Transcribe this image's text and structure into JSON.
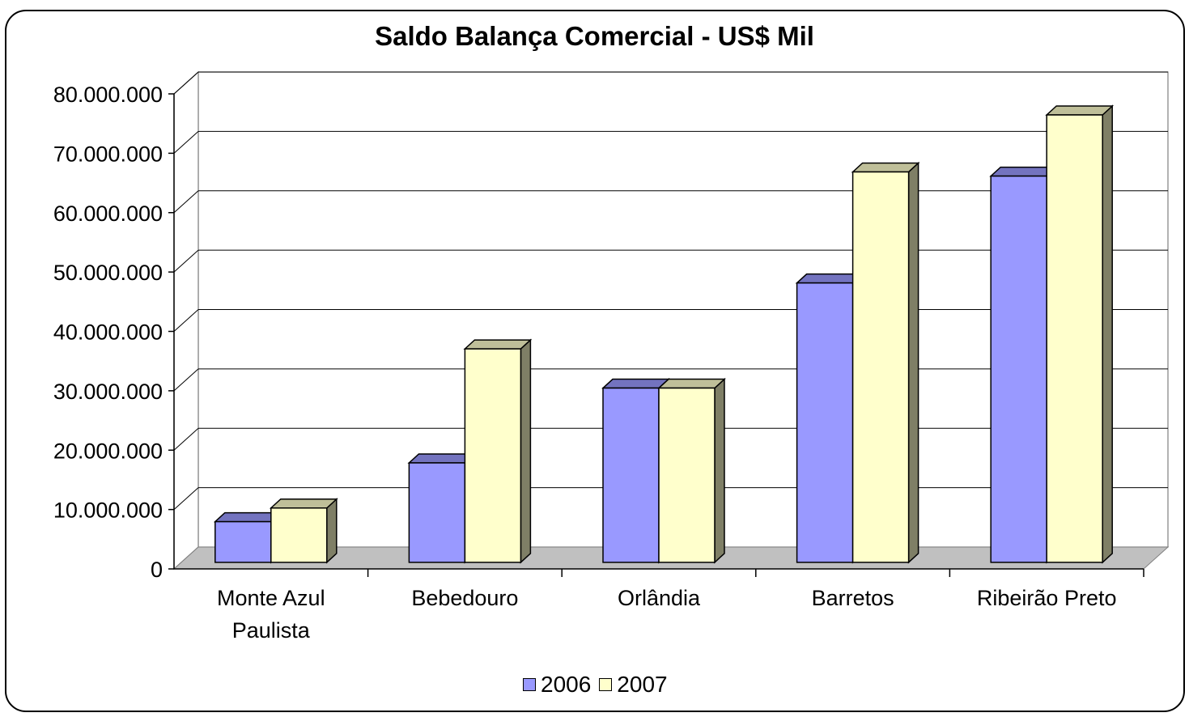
{
  "chart_data": {
    "type": "bar",
    "title": "Saldo Balança Comercial - US$ Mil",
    "xlabel": "",
    "ylabel": "",
    "categories": [
      "Monte Azul Paulista",
      "Bebedouro",
      "Orlândia",
      "Barretos",
      "Ribeirão Preto"
    ],
    "category_lines": [
      [
        "Monte Azul",
        "Paulista"
      ],
      [
        "Bebedouro"
      ],
      [
        "Orlândia"
      ],
      [
        "Barretos"
      ],
      [
        "Ribeirão Preto"
      ]
    ],
    "series": [
      {
        "name": "2006",
        "values": [
          6300000,
          16200000,
          28800000,
          46500000,
          64500000
        ],
        "color": "#9999ff"
      },
      {
        "name": "2007",
        "values": [
          8600000,
          35400000,
          28800000,
          65200000,
          74800000
        ],
        "color": "#ffffcc"
      }
    ],
    "ylim": [
      0,
      80000000
    ],
    "yticks": [
      0,
      10000000,
      20000000,
      30000000,
      40000000,
      50000000,
      60000000,
      70000000,
      80000000
    ],
    "ytick_labels": [
      "0",
      "10.000.000",
      "20.000.000",
      "30.000.000",
      "40.000.000",
      "50.000.000",
      "60.000.000",
      "70.000.000",
      "80.000.000"
    ],
    "grid": true,
    "legend_position": "bottom",
    "style": "3d-column"
  }
}
